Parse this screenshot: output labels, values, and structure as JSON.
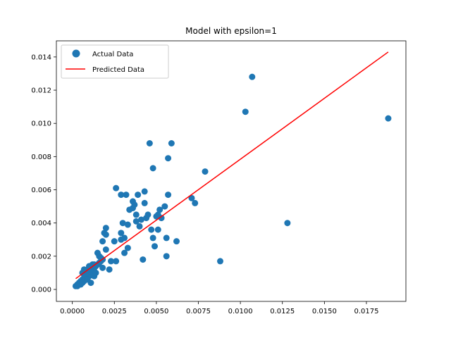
{
  "chart_data": {
    "type": "scatter",
    "title": "Model with epsilon=1",
    "xlabel": "",
    "ylabel": "",
    "xlim": [
      -0.00095,
      0.01985
    ],
    "ylim": [
      -0.00072,
      0.01497
    ],
    "x_ticks": [
      0.0,
      0.0025,
      0.005,
      0.0075,
      0.01,
      0.0125,
      0.015,
      0.0175
    ],
    "x_tick_labels": [
      "0.0000",
      "0.0025",
      "0.0050",
      "0.0075",
      "0.0100",
      "0.0125",
      "0.0150",
      "0.0175"
    ],
    "y_ticks": [
      0.0,
      0.002,
      0.004,
      0.006,
      0.008,
      0.01,
      0.012,
      0.014
    ],
    "y_tick_labels": [
      "0.000",
      "0.002",
      "0.004",
      "0.006",
      "0.008",
      "0.010",
      "0.012",
      "0.014"
    ],
    "grid": false,
    "legend_position": "top-left",
    "series": [
      {
        "name": "Actual Data",
        "type": "scatter",
        "color": "#1f77b4",
        "points": [
          [
            0.0002,
            0.0002
          ],
          [
            0.0003,
            0.0003
          ],
          [
            0.0003,
            0.0002
          ],
          [
            0.0004,
            0.0004
          ],
          [
            0.0004,
            0.0003
          ],
          [
            0.0005,
            0.0005
          ],
          [
            0.0005,
            0.0003
          ],
          [
            0.0006,
            0.0006
          ],
          [
            0.0006,
            0.0004
          ],
          [
            0.0007,
            0.0007
          ],
          [
            0.0007,
            0.0005
          ],
          [
            0.0008,
            0.0008
          ],
          [
            0.0008,
            0.0006
          ],
          [
            0.0009,
            0.0009
          ],
          [
            0.0009,
            0.0007
          ],
          [
            0.001,
            0.001
          ],
          [
            0.001,
            0.0008
          ],
          [
            0.0011,
            0.0011
          ],
          [
            0.0011,
            0.0009
          ],
          [
            0.0012,
            0.0012
          ],
          [
            0.0012,
            0.001
          ],
          [
            0.0013,
            0.0013
          ],
          [
            0.0013,
            0.0011
          ],
          [
            0.0014,
            0.0014
          ],
          [
            0.0015,
            0.0015
          ],
          [
            0.0016,
            0.0016
          ],
          [
            0.0017,
            0.0017
          ],
          [
            0.0018,
            0.0018
          ],
          [
            0.0006,
            0.001
          ],
          [
            0.0007,
            0.0012
          ],
          [
            0.0008,
            0.0009
          ],
          [
            0.0009,
            0.0012
          ],
          [
            0.001,
            0.0014
          ],
          [
            0.0011,
            0.0014
          ],
          [
            0.0012,
            0.0015
          ],
          [
            0.0013,
            0.0015
          ],
          [
            0.0015,
            0.0022
          ],
          [
            0.0016,
            0.002
          ],
          [
            0.0017,
            0.0019
          ],
          [
            0.0018,
            0.0029
          ],
          [
            0.0019,
            0.0034
          ],
          [
            0.002,
            0.0037
          ],
          [
            0.002,
            0.0033
          ],
          [
            0.002,
            0.0024
          ],
          [
            0.0018,
            0.0013
          ],
          [
            0.0014,
            0.001
          ],
          [
            0.0013,
            0.0008
          ],
          [
            0.0011,
            0.0004
          ],
          [
            0.0009,
            0.0006
          ],
          [
            0.0007,
            0.0009
          ],
          [
            0.0025,
            0.0029
          ],
          [
            0.0023,
            0.0017
          ],
          [
            0.0022,
            0.0012
          ],
          [
            0.0026,
            0.0017
          ],
          [
            0.0026,
            0.0061
          ],
          [
            0.0029,
            0.0057
          ],
          [
            0.003,
            0.004
          ],
          [
            0.0029,
            0.0034
          ],
          [
            0.0029,
            0.003
          ],
          [
            0.0031,
            0.0031
          ],
          [
            0.0031,
            0.0022
          ],
          [
            0.0032,
            0.0057
          ],
          [
            0.0033,
            0.0039
          ],
          [
            0.0033,
            0.0025
          ],
          [
            0.0034,
            0.0048
          ],
          [
            0.0036,
            0.0049
          ],
          [
            0.0036,
            0.0053
          ],
          [
            0.0037,
            0.0051
          ],
          [
            0.0038,
            0.0045
          ],
          [
            0.0038,
            0.0041
          ],
          [
            0.0039,
            0.0057
          ],
          [
            0.004,
            0.0038
          ],
          [
            0.0041,
            0.0042
          ],
          [
            0.0042,
            0.0018
          ],
          [
            0.0043,
            0.0052
          ],
          [
            0.0043,
            0.0059
          ],
          [
            0.0044,
            0.0043
          ],
          [
            0.0045,
            0.0045
          ],
          [
            0.0046,
            0.0088
          ],
          [
            0.0047,
            0.0036
          ],
          [
            0.0048,
            0.0031
          ],
          [
            0.0048,
            0.0073
          ],
          [
            0.0049,
            0.0026
          ],
          [
            0.005,
            0.0044
          ],
          [
            0.0051,
            0.0045
          ],
          [
            0.0051,
            0.0036
          ],
          [
            0.0052,
            0.0048
          ],
          [
            0.0053,
            0.0043
          ],
          [
            0.0055,
            0.005
          ],
          [
            0.0056,
            0.0031
          ],
          [
            0.0056,
            0.002
          ],
          [
            0.0057,
            0.0057
          ],
          [
            0.0057,
            0.0079
          ],
          [
            0.0059,
            0.0088
          ],
          [
            0.0062,
            0.0029
          ],
          [
            0.0071,
            0.0055
          ],
          [
            0.0073,
            0.0052
          ],
          [
            0.0079,
            0.0071
          ],
          [
            0.0088,
            0.0017
          ],
          [
            0.0103,
            0.0107
          ],
          [
            0.0107,
            0.0128
          ],
          [
            0.0128,
            0.004
          ],
          [
            0.0188,
            0.0103
          ]
        ]
      },
      {
        "name": "Predicted Data",
        "type": "line",
        "color": "#ff0000",
        "points": [
          [
            0.0002,
            0.00065
          ],
          [
            0.0188,
            0.0143
          ]
        ]
      }
    ]
  }
}
